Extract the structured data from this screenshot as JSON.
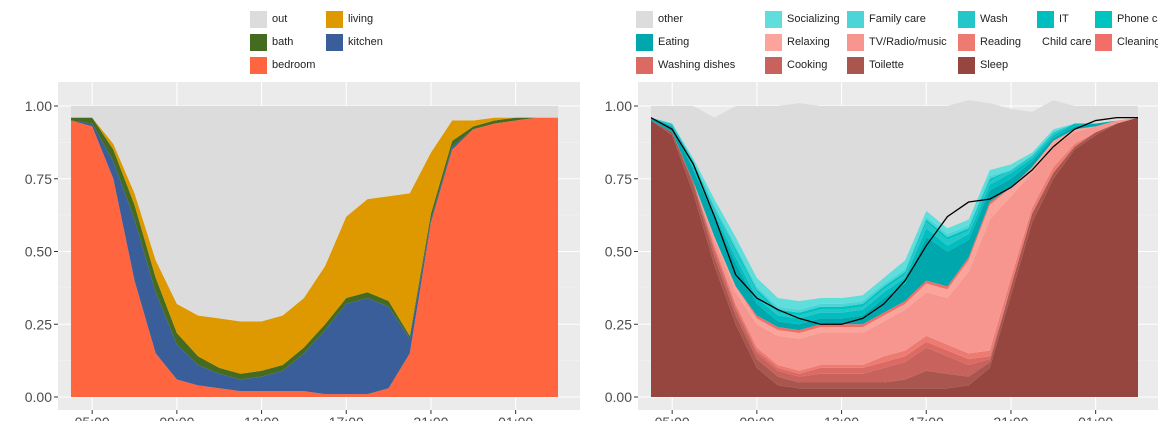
{
  "chart_data": [
    {
      "type": "area",
      "stacked": true,
      "x": [
        "04:00",
        "05:00",
        "06:00",
        "07:00",
        "08:00",
        "09:00",
        "10:00",
        "11:00",
        "12:00",
        "13:00",
        "14:00",
        "15:00",
        "16:00",
        "17:00",
        "18:00",
        "19:00",
        "20:00",
        "21:00",
        "22:00",
        "23:00",
        "00:00",
        "01:00",
        "02:00",
        "03:00"
      ],
      "series": [
        {
          "name": "bedroom",
          "color": "#FF6640",
          "values": [
            0.95,
            0.93,
            0.75,
            0.4,
            0.15,
            0.06,
            0.04,
            0.03,
            0.02,
            0.02,
            0.02,
            0.02,
            0.01,
            0.01,
            0.01,
            0.03,
            0.15,
            0.6,
            0.85,
            0.92,
            0.94,
            0.95,
            0.96,
            0.96
          ]
        },
        {
          "name": "kitchen",
          "color": "#3A5E9A",
          "values": [
            0.0,
            0.01,
            0.06,
            0.21,
            0.21,
            0.12,
            0.07,
            0.05,
            0.04,
            0.05,
            0.07,
            0.13,
            0.22,
            0.31,
            0.33,
            0.28,
            0.05,
            0.01,
            0.01,
            0.0,
            0.0,
            0.0,
            0.0,
            0.0
          ]
        },
        {
          "name": "bath",
          "color": "#446B1F",
          "values": [
            0.01,
            0.02,
            0.04,
            0.05,
            0.05,
            0.04,
            0.03,
            0.02,
            0.02,
            0.02,
            0.02,
            0.02,
            0.02,
            0.02,
            0.02,
            0.02,
            0.01,
            0.02,
            0.02,
            0.01,
            0.01,
            0.01,
            0.0,
            0.0
          ]
        },
        {
          "name": "living",
          "color": "#DE9800",
          "values": [
            0.0,
            0.0,
            0.02,
            0.04,
            0.06,
            0.1,
            0.14,
            0.17,
            0.18,
            0.17,
            0.17,
            0.17,
            0.2,
            0.28,
            0.32,
            0.36,
            0.49,
            0.21,
            0.07,
            0.02,
            0.01,
            0.0,
            0.0,
            0.0
          ]
        },
        {
          "name": "out",
          "color": "#DCDCDC",
          "values": [
            0.04,
            0.04,
            0.13,
            0.3,
            0.53,
            0.68,
            0.72,
            0.73,
            0.74,
            0.74,
            0.72,
            0.66,
            0.55,
            0.38,
            0.32,
            0.31,
            0.3,
            0.16,
            0.05,
            0.05,
            0.04,
            0.04,
            0.04,
            0.04
          ]
        }
      ],
      "xlabel": "",
      "ylabel": "",
      "ylim": [
        0,
        1
      ],
      "y_ticks": [
        "0.00",
        "0.25",
        "0.50",
        "0.75",
        "1.00"
      ],
      "x_ticks": [
        "05:00",
        "09:00",
        "13:00",
        "17:00",
        "21:00",
        "01:00"
      ],
      "legend_order": [
        "out",
        "living",
        "bath",
        "kitchen",
        "bedroom"
      ],
      "legend_position": "top",
      "grid": true
    },
    {
      "type": "area",
      "stacked": true,
      "x": [
        "04:00",
        "05:00",
        "06:00",
        "07:00",
        "08:00",
        "09:00",
        "10:00",
        "11:00",
        "12:00",
        "13:00",
        "14:00",
        "15:00",
        "16:00",
        "17:00",
        "18:00",
        "19:00",
        "20:00",
        "21:00",
        "22:00",
        "23:00",
        "00:00",
        "01:00",
        "02:00",
        "03:00"
      ],
      "series": [
        {
          "name": "Sleep",
          "color": "#96463E",
          "values": [
            0.95,
            0.9,
            0.7,
            0.45,
            0.25,
            0.1,
            0.04,
            0.03,
            0.03,
            0.03,
            0.03,
            0.03,
            0.03,
            0.03,
            0.03,
            0.04,
            0.1,
            0.35,
            0.6,
            0.75,
            0.85,
            0.9,
            0.94,
            0.96
          ]
        },
        {
          "name": "Toilette",
          "color": "#A9564F",
          "values": [
            0.0,
            0.01,
            0.03,
            0.03,
            0.03,
            0.03,
            0.03,
            0.02,
            0.02,
            0.02,
            0.02,
            0.02,
            0.03,
            0.06,
            0.05,
            0.03,
            0.02,
            0.03,
            0.03,
            0.02,
            0.01,
            0.01,
            0.0,
            0.0
          ]
        },
        {
          "name": "Cooking",
          "color": "#C7625C",
          "values": [
            0.0,
            0.0,
            0.01,
            0.02,
            0.02,
            0.02,
            0.02,
            0.02,
            0.03,
            0.03,
            0.03,
            0.05,
            0.06,
            0.08,
            0.06,
            0.04,
            0.01,
            0.0,
            0.0,
            0.0,
            0.0,
            0.0,
            0.0,
            0.0
          ]
        },
        {
          "name": "Washing dishes",
          "color": "#DB6A62",
          "values": [
            0.0,
            0.0,
            0.0,
            0.01,
            0.01,
            0.01,
            0.01,
            0.01,
            0.02,
            0.02,
            0.02,
            0.02,
            0.02,
            0.02,
            0.02,
            0.02,
            0.01,
            0.0,
            0.0,
            0.0,
            0.0,
            0.0,
            0.0,
            0.0
          ]
        },
        {
          "name": "Reading",
          "color": "#EE7B72",
          "values": [
            0.0,
            0.0,
            0.0,
            0.01,
            0.01,
            0.01,
            0.01,
            0.01,
            0.01,
            0.01,
            0.01,
            0.02,
            0.02,
            0.02,
            0.02,
            0.02,
            0.02,
            0.03,
            0.02,
            0.02,
            0.01,
            0.0,
            0.0,
            0.0
          ]
        },
        {
          "name": "TV/Radio/music",
          "color": "#F7968E",
          "values": [
            0.0,
            0.0,
            0.0,
            0.02,
            0.04,
            0.08,
            0.1,
            0.11,
            0.11,
            0.11,
            0.11,
            0.12,
            0.14,
            0.15,
            0.16,
            0.28,
            0.45,
            0.28,
            0.12,
            0.07,
            0.04,
            0.02,
            0.01,
            0.0
          ]
        },
        {
          "name": "Relaxing",
          "color": "#FBA49C",
          "values": [
            0.0,
            0.0,
            0.0,
            0.01,
            0.02,
            0.02,
            0.02,
            0.02,
            0.02,
            0.02,
            0.02,
            0.02,
            0.02,
            0.03,
            0.03,
            0.04,
            0.05,
            0.03,
            0.02,
            0.02,
            0.01,
            0.0,
            0.0,
            0.0
          ]
        },
        {
          "name": "Cleaning",
          "color": "#F26F67",
          "values": [
            0.0,
            0.0,
            0.0,
            0.0,
            0.0,
            0.01,
            0.01,
            0.01,
            0.01,
            0.01,
            0.01,
            0.01,
            0.01,
            0.01,
            0.01,
            0.01,
            0.01,
            0.0,
            0.0,
            0.0,
            0.0,
            0.0,
            0.0,
            0.0
          ]
        },
        {
          "name": "Child care",
          "color": "#F5706A",
          "values": [
            0.0,
            0.0,
            0.0,
            0.0,
            0.0,
            0.0,
            0.0,
            0.0,
            0.0,
            0.0,
            0.0,
            0.0,
            0.0,
            0.0,
            0.0,
            0.0,
            0.0,
            0.0,
            0.0,
            0.0,
            0.0,
            0.0,
            0.0,
            0.0
          ]
        },
        {
          "name": "Eating",
          "color": "#00A8AD",
          "values": [
            0.01,
            0.02,
            0.04,
            0.07,
            0.08,
            0.04,
            0.02,
            0.02,
            0.02,
            0.02,
            0.03,
            0.05,
            0.06,
            0.15,
            0.12,
            0.06,
            0.04,
            0.03,
            0.02,
            0.01,
            0.01,
            0.01,
            0.0,
            0.0
          ]
        },
        {
          "name": "IT",
          "color": "#00BDC0",
          "values": [
            0.0,
            0.0,
            0.01,
            0.01,
            0.02,
            0.02,
            0.02,
            0.02,
            0.02,
            0.02,
            0.02,
            0.02,
            0.02,
            0.03,
            0.02,
            0.02,
            0.02,
            0.02,
            0.01,
            0.01,
            0.01,
            0.0,
            0.0,
            0.0
          ]
        },
        {
          "name": "Wash",
          "color": "#24C7C9",
          "values": [
            0.0,
            0.01,
            0.02,
            0.02,
            0.02,
            0.02,
            0.01,
            0.01,
            0.01,
            0.01,
            0.01,
            0.01,
            0.01,
            0.02,
            0.02,
            0.01,
            0.01,
            0.01,
            0.01,
            0.01,
            0.0,
            0.0,
            0.0,
            0.0
          ]
        },
        {
          "name": "Phone calls",
          "color": "#00C4C0",
          "values": [
            0.0,
            0.0,
            0.0,
            0.0,
            0.01,
            0.01,
            0.01,
            0.01,
            0.01,
            0.01,
            0.01,
            0.01,
            0.01,
            0.01,
            0.01,
            0.01,
            0.01,
            0.0,
            0.0,
            0.0,
            0.0,
            0.0,
            0.0,
            0.0
          ]
        },
        {
          "name": "Family care",
          "color": "#4DD4D6",
          "values": [
            0.0,
            0.0,
            0.0,
            0.01,
            0.01,
            0.01,
            0.01,
            0.01,
            0.01,
            0.01,
            0.01,
            0.01,
            0.01,
            0.01,
            0.01,
            0.01,
            0.01,
            0.0,
            0.0,
            0.0,
            0.0,
            0.0,
            0.0,
            0.0
          ]
        },
        {
          "name": "Socializing",
          "color": "#5FDEDB",
          "values": [
            0.0,
            0.0,
            0.01,
            0.02,
            0.03,
            0.03,
            0.03,
            0.03,
            0.02,
            0.02,
            0.02,
            0.02,
            0.03,
            0.02,
            0.02,
            0.02,
            0.02,
            0.02,
            0.01,
            0.01,
            0.0,
            0.0,
            0.0,
            0.0
          ]
        },
        {
          "name": "other",
          "color": "#DCDCDC",
          "values": [
            0.04,
            0.06,
            0.18,
            0.28,
            0.45,
            0.59,
            0.66,
            0.68,
            0.66,
            0.66,
            0.65,
            0.59,
            0.53,
            0.36,
            0.42,
            0.41,
            0.23,
            0.19,
            0.14,
            0.1,
            0.06,
            0.06,
            0.05,
            0.04
          ]
        }
      ],
      "overlay_line": {
        "color": "#000000",
        "values": [
          0.96,
          0.92,
          0.8,
          0.62,
          0.42,
          0.34,
          0.3,
          0.27,
          0.25,
          0.25,
          0.27,
          0.32,
          0.4,
          0.52,
          0.62,
          0.67,
          0.68,
          0.72,
          0.78,
          0.86,
          0.92,
          0.95,
          0.96,
          0.96
        ]
      },
      "xlabel": "",
      "ylabel": "",
      "ylim": [
        0,
        1
      ],
      "y_ticks": [
        "0.00",
        "0.25",
        "0.50",
        "0.75",
        "1.00"
      ],
      "x_ticks": [
        "05:00",
        "09:00",
        "13:00",
        "17:00",
        "21:00",
        "01:00"
      ],
      "legend_order": [
        "other",
        "Socializing",
        "Family care",
        "Wash",
        "IT",
        "Phone calls",
        "Eating",
        "Relaxing",
        "TV/Radio/music",
        "Reading",
        "Child care",
        "Cleaning",
        "Washing dishes",
        "Cooking",
        "Toilette",
        "Sleep"
      ],
      "legend_position": "top",
      "grid": true
    }
  ]
}
